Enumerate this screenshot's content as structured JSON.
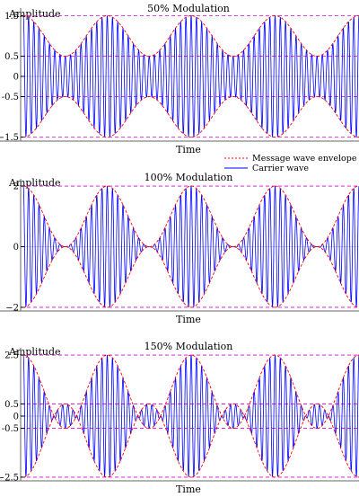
{
  "figure": {
    "legend": {
      "placement": "between first and second panel, right",
      "envelope_label": "Message wave envelope",
      "carrier_label": "Carrier wave"
    },
    "colors": {
      "envelope": "#ff0000",
      "carrier": "#0000ff",
      "reference_lines": "#dd00dd",
      "axis": "#666666"
    }
  },
  "chart_data": [
    {
      "type": "line",
      "title": "50% Modulation",
      "ylabel": "Amplitude",
      "xlabel": "Time",
      "modulation_index": 0.5,
      "message_cycles": 4,
      "carrier_cycles_per_message_cycle": 16,
      "ylim": [
        -1.6,
        1.6
      ],
      "y_ticks": [
        {
          "value": 1.5,
          "label": "1.5"
        },
        {
          "value": 0.5,
          "label": "0.5"
        },
        {
          "value": 0,
          "label": "0"
        },
        {
          "value": -0.5,
          "label": "-0.5"
        },
        {
          "value": -1.5,
          "label": "−1.5"
        }
      ],
      "reference_lines": [
        1.5,
        0.5,
        -0.5,
        -1.5
      ],
      "series": [
        {
          "name": "Message wave envelope",
          "envelope_max": 1.5,
          "envelope_min": 0.5
        },
        {
          "name": "Carrier wave",
          "amplitude_max": 1.5,
          "amplitude_min": 0.5
        }
      ],
      "grid": false
    },
    {
      "type": "line",
      "title": "100% Modulation",
      "ylabel": "Amplitude",
      "xlabel": "Time",
      "modulation_index": 1.0,
      "message_cycles": 4,
      "carrier_cycles_per_message_cycle": 16,
      "ylim": [
        -2.12,
        2.12
      ],
      "y_ticks": [
        {
          "value": 2,
          "label": "2"
        },
        {
          "value": 0,
          "label": "0"
        },
        {
          "value": -2,
          "label": "−2"
        }
      ],
      "reference_lines": [
        2,
        -2
      ],
      "series": [
        {
          "name": "Message wave envelope",
          "envelope_max": 2,
          "envelope_min": 0
        },
        {
          "name": "Carrier wave",
          "amplitude_max": 2,
          "amplitude_min": 0
        }
      ],
      "grid": false
    },
    {
      "type": "line",
      "title": "150% Modulation",
      "ylabel": "Amplitude",
      "xlabel": "Time",
      "modulation_index": 1.5,
      "message_cycles": 4,
      "carrier_cycles_per_message_cycle": 16,
      "ylim": [
        -2.65,
        2.65
      ],
      "y_ticks": [
        {
          "value": 2.5,
          "label": "2.5"
        },
        {
          "value": 0.5,
          "label": "0.5"
        },
        {
          "value": 0,
          "label": "0"
        },
        {
          "value": -0.5,
          "label": "-0.5"
        },
        {
          "value": -2.5,
          "label": "−2.5"
        }
      ],
      "reference_lines": [
        2.5,
        0.5,
        -0.5,
        -2.5
      ],
      "series": [
        {
          "name": "Message wave envelope",
          "envelope_max": 2.5,
          "envelope_min": -0.5
        },
        {
          "name": "Carrier wave",
          "amplitude_max": 2.5,
          "amplitude_min": 0
        }
      ],
      "grid": false
    }
  ]
}
